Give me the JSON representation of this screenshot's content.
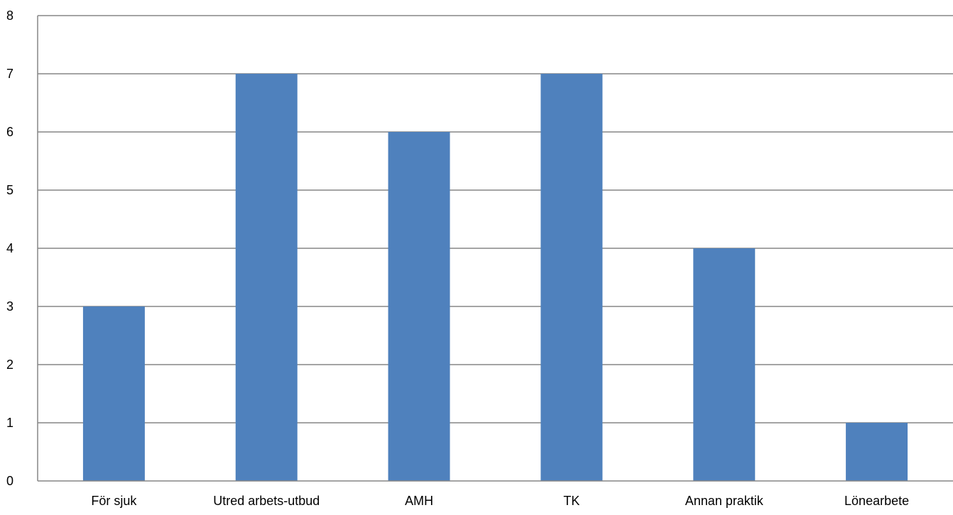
{
  "chart_data": {
    "type": "bar",
    "categories": [
      "För sjuk",
      "Utred arbets-utbud",
      "AMH",
      "TK",
      "Annan praktik",
      "Lönearbete"
    ],
    "series": [
      {
        "values": [
          3,
          7,
          6,
          7,
          4,
          1
        ],
        "color": "#4F81BD"
      }
    ],
    "title": "",
    "xlabel": "",
    "ylabel": "",
    "ylim": [
      0,
      8
    ],
    "yticks": [
      0,
      1,
      2,
      3,
      4,
      5,
      6,
      7,
      8
    ],
    "grid": true,
    "legend": "none",
    "gridline_color": "#868686"
  }
}
